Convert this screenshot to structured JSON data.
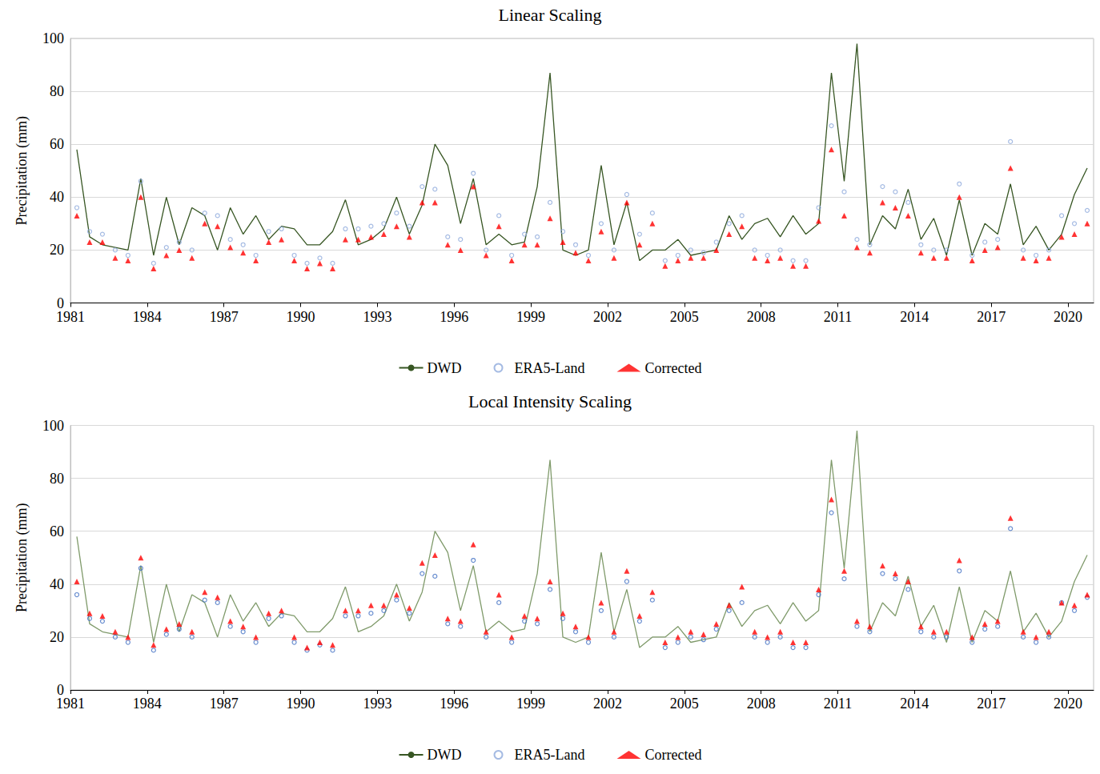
{
  "chart_data": [
    {
      "type": "line",
      "title": "Linear Scaling",
      "ylabel": "Precipitation (mm)",
      "x": [
        1981.25,
        1981.75,
        1982.25,
        1982.75,
        1983.25,
        1983.75,
        1984.25,
        1984.75,
        1985.25,
        1985.75,
        1986.25,
        1986.75,
        1987.25,
        1987.75,
        1988.25,
        1988.75,
        1989.25,
        1989.75,
        1990.25,
        1990.75,
        1991.25,
        1991.75,
        1992.25,
        1992.75,
        1993.25,
        1993.75,
        1994.25,
        1994.75,
        1995.25,
        1995.75,
        1996.25,
        1996.75,
        1997.25,
        1997.75,
        1998.25,
        1998.75,
        1999.25,
        1999.75,
        2000.25,
        2000.75,
        2001.25,
        2001.75,
        2002.25,
        2002.75,
        2003.25,
        2003.75,
        2004.25,
        2004.75,
        2005.25,
        2005.75,
        2006.25,
        2006.75,
        2007.25,
        2007.75,
        2008.25,
        2008.75,
        2009.25,
        2009.75,
        2010.25,
        2010.75,
        2011.25,
        2011.75,
        2012.25,
        2012.75,
        2013.25,
        2013.75,
        2014.25,
        2014.75,
        2015.25,
        2015.75,
        2016.25,
        2016.75,
        2017.25,
        2017.75,
        2018.25,
        2018.75,
        2019.25,
        2019.75,
        2020.25,
        2020.75
      ],
      "xlim": [
        1981,
        2021
      ],
      "xticks": [
        1981,
        1984,
        1987,
        1990,
        1993,
        1996,
        1999,
        2002,
        2005,
        2008,
        2011,
        2014,
        2017,
        2020
      ],
      "ylim": [
        0,
        100
      ],
      "yticks": [
        0,
        20,
        40,
        60,
        80,
        100
      ],
      "grid": true,
      "legend": "bottom",
      "series": [
        {
          "name": "DWD",
          "type": "line",
          "line_style": "solid",
          "color": "#375623",
          "values": [
            58,
            25,
            22,
            21,
            20,
            47,
            18,
            40,
            22,
            36,
            33,
            20,
            36,
            26,
            33,
            24,
            29,
            28,
            22,
            22,
            27,
            39,
            22,
            24,
            28,
            40,
            26,
            37,
            60,
            52,
            30,
            47,
            22,
            26,
            22,
            23,
            44,
            87,
            20,
            18,
            20,
            52,
            22,
            38,
            16,
            20,
            20,
            24,
            18,
            19,
            20,
            33,
            24,
            30,
            32,
            25,
            33,
            26,
            30,
            87,
            46,
            98,
            22,
            33,
            28,
            43,
            24,
            32,
            18,
            39,
            18,
            30,
            26,
            45,
            22,
            29,
            20,
            26,
            41,
            51
          ]
        },
        {
          "name": "ERA5-Land",
          "type": "scatter",
          "marker": "circle",
          "color": "#8faadc",
          "values": [
            36,
            27,
            26,
            20,
            18,
            46,
            15,
            21,
            23,
            20,
            34,
            33,
            24,
            22,
            18,
            27,
            28,
            18,
            15,
            17,
            15,
            28,
            28,
            29,
            30,
            34,
            29,
            44,
            43,
            25,
            24,
            49,
            20,
            33,
            18,
            26,
            25,
            38,
            27,
            22,
            18,
            30,
            20,
            41,
            26,
            34,
            16,
            18,
            20,
            19,
            23,
            30,
            33,
            20,
            18,
            20,
            16,
            16,
            36,
            67,
            42,
            24,
            22,
            44,
            42,
            38,
            22,
            20,
            20,
            45,
            18,
            23,
            24,
            61,
            20,
            18,
            20,
            33,
            30,
            35
          ]
        },
        {
          "name": "Corrected",
          "type": "scatter",
          "marker": "triangle",
          "color": "#ff0000",
          "values": [
            33,
            23,
            23,
            17,
            16,
            40,
            13,
            18,
            20,
            17,
            30,
            29,
            21,
            19,
            16,
            23,
            24,
            16,
            13,
            15,
            13,
            24,
            24,
            25,
            26,
            29,
            25,
            38,
            38,
            22,
            20,
            44,
            18,
            29,
            16,
            22,
            22,
            32,
            23,
            19,
            16,
            27,
            17,
            38,
            22,
            30,
            14,
            16,
            17,
            17,
            20,
            26,
            29,
            17,
            16,
            17,
            14,
            14,
            31,
            58,
            33,
            21,
            19,
            38,
            36,
            33,
            19,
            17,
            17,
            40,
            16,
            20,
            21,
            51,
            17,
            16,
            17,
            25,
            26,
            30
          ]
        }
      ]
    },
    {
      "type": "line",
      "title": "Local Intensity Scaling",
      "ylabel": "Precipitation (mm)",
      "x": [
        1981.25,
        1981.75,
        1982.25,
        1982.75,
        1983.25,
        1983.75,
        1984.25,
        1984.75,
        1985.25,
        1985.75,
        1986.25,
        1986.75,
        1987.25,
        1987.75,
        1988.25,
        1988.75,
        1989.25,
        1989.75,
        1990.25,
        1990.75,
        1991.25,
        1991.75,
        1992.25,
        1992.75,
        1993.25,
        1993.75,
        1994.25,
        1994.75,
        1995.25,
        1995.75,
        1996.25,
        1996.75,
        1997.25,
        1997.75,
        1998.25,
        1998.75,
        1999.25,
        1999.75,
        2000.25,
        2000.75,
        2001.25,
        2001.75,
        2002.25,
        2002.75,
        2003.25,
        2003.75,
        2004.25,
        2004.75,
        2005.25,
        2005.75,
        2006.25,
        2006.75,
        2007.25,
        2007.75,
        2008.25,
        2008.75,
        2009.25,
        2009.75,
        2010.25,
        2010.75,
        2011.25,
        2011.75,
        2012.25,
        2012.75,
        2013.25,
        2013.75,
        2014.25,
        2014.75,
        2015.25,
        2015.75,
        2016.25,
        2016.75,
        2017.25,
        2017.75,
        2018.25,
        2018.75,
        2019.25,
        2019.75,
        2020.25,
        2020.75
      ],
      "xlim": [
        1981,
        2021
      ],
      "xticks": [
        1981,
        1984,
        1987,
        1990,
        1993,
        1996,
        1999,
        2002,
        2005,
        2008,
        2011,
        2014,
        2017,
        2020
      ],
      "ylim": [
        0,
        100
      ],
      "yticks": [
        0,
        20,
        40,
        60,
        80,
        100
      ],
      "grid": true,
      "legend": "bottom",
      "series": [
        {
          "name": "DWD",
          "type": "line",
          "line_style": "solid",
          "color": "#7f9a6a",
          "values": [
            58,
            25,
            22,
            21,
            20,
            47,
            18,
            40,
            22,
            36,
            33,
            20,
            36,
            26,
            33,
            24,
            29,
            28,
            22,
            22,
            27,
            39,
            22,
            24,
            28,
            40,
            26,
            37,
            60,
            52,
            30,
            47,
            22,
            26,
            22,
            23,
            44,
            87,
            20,
            18,
            20,
            52,
            22,
            38,
            16,
            20,
            20,
            24,
            18,
            19,
            20,
            33,
            24,
            30,
            32,
            25,
            33,
            26,
            30,
            87,
            46,
            98,
            22,
            33,
            28,
            43,
            24,
            32,
            18,
            39,
            18,
            30,
            26,
            45,
            22,
            29,
            20,
            26,
            41,
            51
          ]
        },
        {
          "name": "ERA5-Land",
          "type": "scatter",
          "marker": "circle",
          "color": "#4472c4",
          "values": [
            36,
            27,
            26,
            20,
            18,
            46,
            15,
            21,
            23,
            20,
            34,
            33,
            24,
            22,
            18,
            27,
            28,
            18,
            15,
            17,
            15,
            28,
            28,
            29,
            30,
            34,
            29,
            44,
            43,
            25,
            24,
            49,
            20,
            33,
            18,
            26,
            25,
            38,
            27,
            22,
            18,
            30,
            20,
            41,
            26,
            34,
            16,
            18,
            20,
            19,
            23,
            30,
            33,
            20,
            18,
            20,
            16,
            16,
            36,
            67,
            42,
            24,
            22,
            44,
            42,
            38,
            22,
            20,
            20,
            45,
            18,
            23,
            24,
            61,
            20,
            18,
            20,
            33,
            30,
            35
          ]
        },
        {
          "name": "Corrected",
          "type": "scatter",
          "marker": "triangle",
          "color": "#ff0000",
          "values": [
            41,
            29,
            28,
            22,
            20,
            50,
            17,
            23,
            25,
            22,
            37,
            35,
            26,
            24,
            20,
            29,
            30,
            20,
            16,
            18,
            17,
            30,
            30,
            32,
            32,
            36,
            31,
            48,
            51,
            27,
            26,
            55,
            22,
            36,
            20,
            28,
            27,
            41,
            29,
            24,
            20,
            33,
            22,
            45,
            28,
            37,
            18,
            20,
            22,
            21,
            25,
            32,
            39,
            22,
            20,
            22,
            18,
            18,
            38,
            72,
            45,
            26,
            24,
            47,
            44,
            41,
            24,
            22,
            22,
            49,
            20,
            25,
            26,
            65,
            22,
            20,
            22,
            33,
            32,
            36
          ]
        }
      ]
    }
  ]
}
